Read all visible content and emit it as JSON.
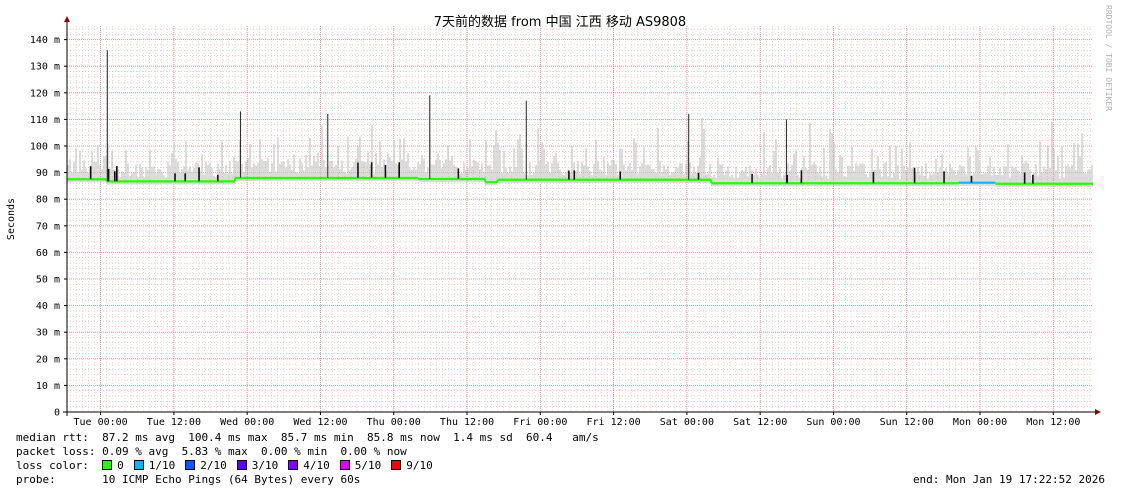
{
  "title": "7天前的数据 from 中国 江西 移动 AS9808",
  "watermark": "RRDTOOL / TOBI OETIKER",
  "chart_data": {
    "type": "line",
    "ylabel": "Seconds",
    "ylim": [
      0,
      145
    ],
    "y_ticks": [
      {
        "value": 0,
        "label": "0"
      },
      {
        "value": 10,
        "label": "10 m"
      },
      {
        "value": 20,
        "label": "20 m"
      },
      {
        "value": 30,
        "label": "30 m"
      },
      {
        "value": 40,
        "label": "40 m"
      },
      {
        "value": 50,
        "label": "50 m"
      },
      {
        "value": 60,
        "label": "60 m"
      },
      {
        "value": 70,
        "label": "70 m"
      },
      {
        "value": 80,
        "label": "80 m"
      },
      {
        "value": 90,
        "label": "90 m"
      },
      {
        "value": 100,
        "label": "100 m"
      },
      {
        "value": 110,
        "label": "110 m"
      },
      {
        "value": 120,
        "label": "120 m"
      },
      {
        "value": 130,
        "label": "130 m"
      },
      {
        "value": 140,
        "label": "140 m"
      }
    ],
    "xlim_hours": [
      0,
      168
    ],
    "x_ticks": [
      {
        "hour": 5.5,
        "label": "Tue 00:00"
      },
      {
        "hour": 17.5,
        "label": "Tue 12:00"
      },
      {
        "hour": 29.5,
        "label": "Wed 00:00"
      },
      {
        "hour": 41.5,
        "label": "Wed 12:00"
      },
      {
        "hour": 53.5,
        "label": "Thu 00:00"
      },
      {
        "hour": 65.5,
        "label": "Thu 12:00"
      },
      {
        "hour": 77.5,
        "label": "Fri 00:00"
      },
      {
        "hour": 89.5,
        "label": "Fri 12:00"
      },
      {
        "hour": 101.5,
        "label": "Sat 00:00"
      },
      {
        "hour": 113.5,
        "label": "Sat 12:00"
      },
      {
        "hour": 125.5,
        "label": "Sun 00:00"
      },
      {
        "hour": 137.5,
        "label": "Sun 12:00"
      },
      {
        "hour": 149.5,
        "label": "Mon 00:00"
      },
      {
        "hour": 161.5,
        "label": "Mon 12:00"
      }
    ],
    "grid": true,
    "colors": {
      "loss_0": "#26ff00",
      "loss_1": "#00b8ff",
      "loss_2": "#0059ff",
      "loss_3": "#5e00ff",
      "loss_4": "#7e00ff",
      "loss_5": "#dd00ff",
      "loss_9": "#ff0000",
      "smoke": "#c4c4c4",
      "grid_minor": "#eeaaaa",
      "grid_major": "#e08080"
    },
    "median_series": [
      {
        "start_hour": 0,
        "end_hour": 6.5,
        "value": 87.5,
        "loss_color": "loss_0"
      },
      {
        "start_hour": 6.5,
        "end_hour": 27.5,
        "value": 86.7,
        "loss_color": "loss_0"
      },
      {
        "start_hour": 27.5,
        "end_hour": 57.5,
        "value": 88.0,
        "loss_color": "loss_0"
      },
      {
        "start_hour": 57.5,
        "end_hour": 68.5,
        "value": 87.6,
        "loss_color": "loss_0"
      },
      {
        "start_hour": 68.5,
        "end_hour": 70.5,
        "value": 86.4,
        "loss_color": "loss_0"
      },
      {
        "start_hour": 70.5,
        "end_hour": 105.5,
        "value": 87.3,
        "loss_color": "loss_0"
      },
      {
        "start_hour": 105.5,
        "end_hour": 146.0,
        "value": 86.0,
        "loss_color": "loss_0"
      },
      {
        "start_hour": 146.0,
        "end_hour": 152.0,
        "value": 86.2,
        "loss_color": "loss_1"
      },
      {
        "start_hour": 152.0,
        "end_hour": 168,
        "value": 85.8,
        "loss_color": "loss_0"
      }
    ],
    "rtt_spikes": [
      {
        "hour": 6.6,
        "value": 136
      },
      {
        "hour": 28.4,
        "value": 113
      },
      {
        "hour": 42.7,
        "value": 112
      },
      {
        "hour": 59.4,
        "value": 119
      },
      {
        "hour": 75.2,
        "value": 117
      },
      {
        "hour": 101.8,
        "value": 112
      },
      {
        "hour": 117.8,
        "value": 110
      }
    ]
  },
  "stats": {
    "median_rtt_label": "median rtt:",
    "median_rtt_value": "87.2 ms avg  100.4 ms max  85.7 ms min  85.8 ms now  1.4 ms sd  60.4   am/s",
    "packet_loss_label": "packet loss:",
    "packet_loss_value": "0.09 % avg  5.83 % max  0.00 % min  0.00 % now",
    "loss_color_label": "loss color:",
    "loss_items": [
      {
        "label": "0",
        "color": "#26ff00"
      },
      {
        "label": "1/10",
        "color": "#00b8ff"
      },
      {
        "label": "2/10",
        "color": "#0059ff"
      },
      {
        "label": "3/10",
        "color": "#5e00ff"
      },
      {
        "label": "4/10",
        "color": "#7e00ff"
      },
      {
        "label": "5/10",
        "color": "#dd00ff"
      },
      {
        "label": "9/10",
        "color": "#ff0000"
      }
    ],
    "probe_label": "probe:",
    "probe_value": "10 ICMP Echo Pings (64 Bytes) every 60s",
    "end_label": "end: Mon Jan 19 17:22:52 2026"
  }
}
